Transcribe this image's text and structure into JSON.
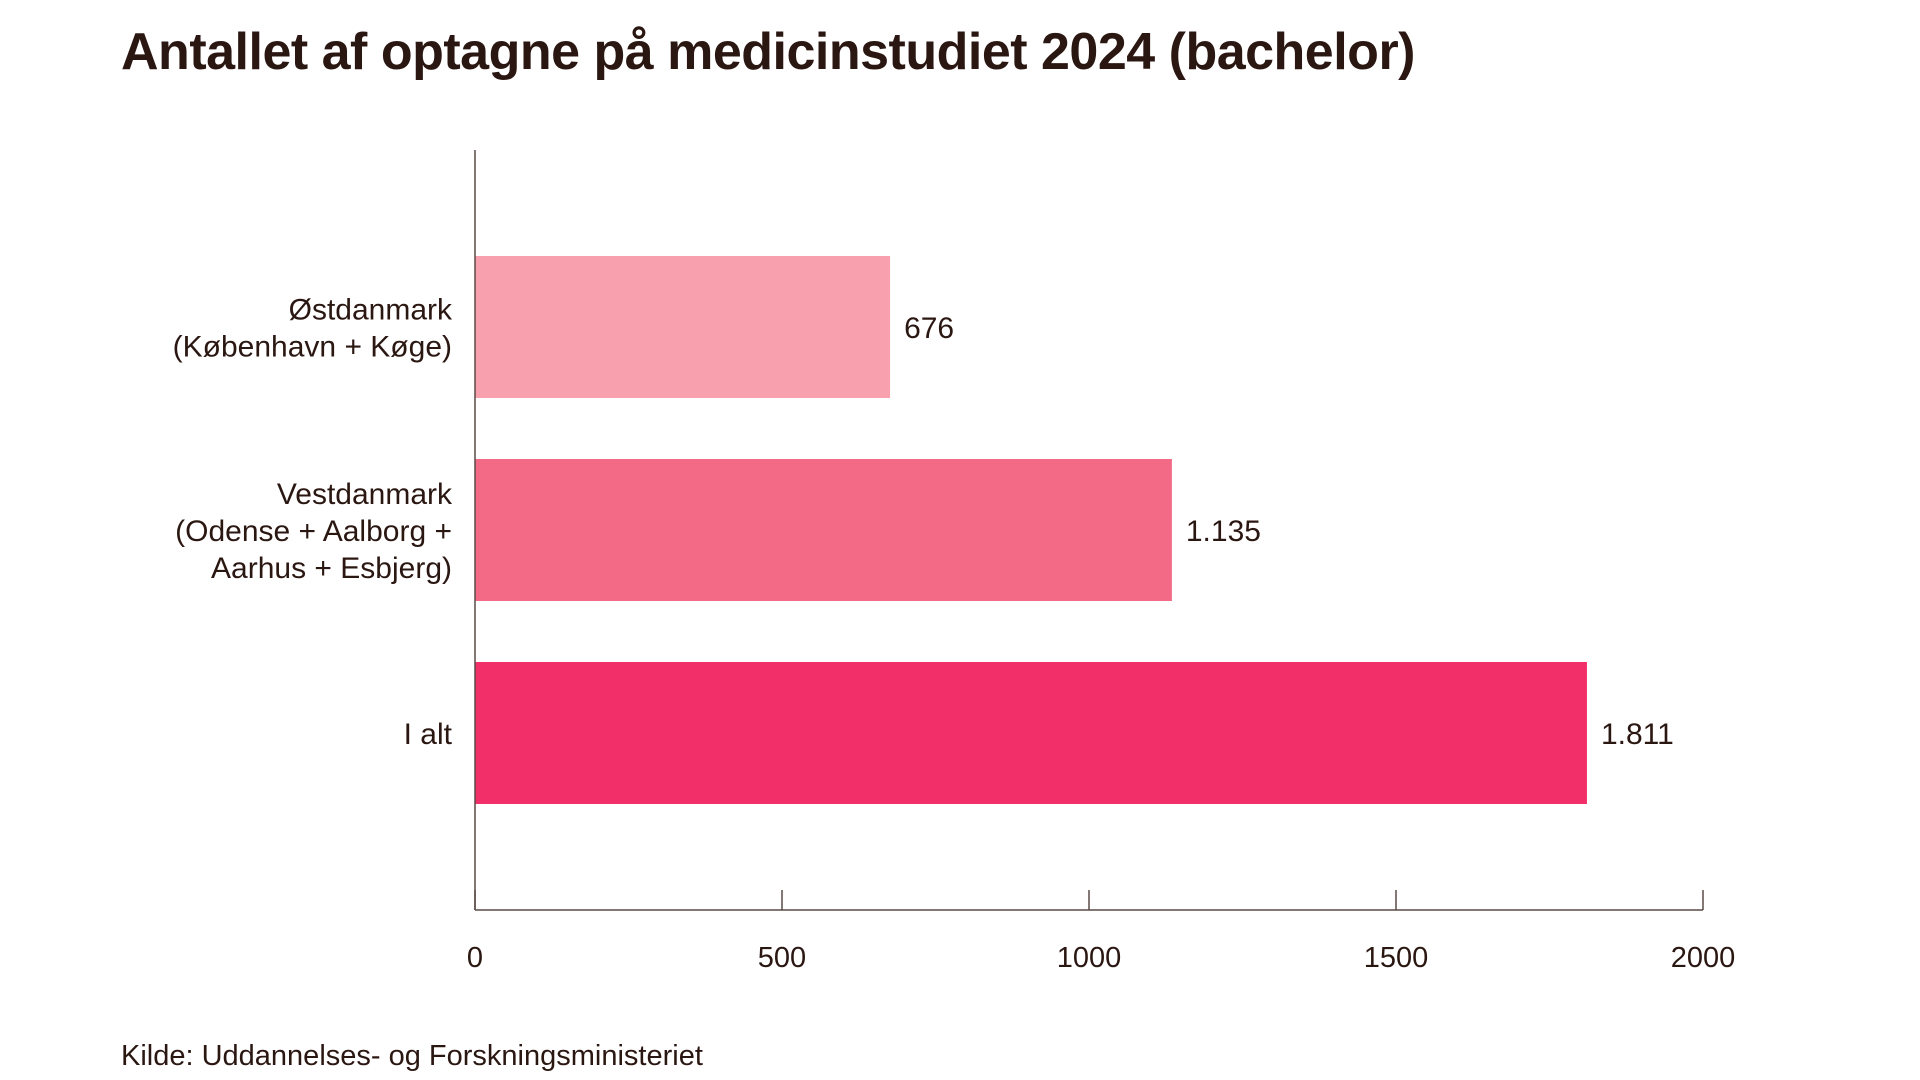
{
  "chart_data": {
    "type": "bar",
    "orientation": "horizontal",
    "title": "Antallet af optagne på medicinstudiet 2024 (bachelor)",
    "source": "Kilde: Uddannelses- og Forskningsministeriet",
    "categories": [
      [
        "Østdanmark",
        "(København + Køge)"
      ],
      [
        "Vestdanmark",
        "(Odense + Aalborg +",
        "Aarhus + Esbjerg)"
      ],
      [
        "I alt"
      ]
    ],
    "values": [
      676,
      1135,
      1811
    ],
    "value_labels": [
      "676",
      "1.135",
      "1.811"
    ],
    "colors": [
      "#f8a0ae",
      "#f36a87",
      "#f22f68"
    ],
    "xlim": [
      0,
      2000
    ],
    "xticks": [
      0,
      500,
      1000,
      1500,
      2000
    ],
    "xtick_labels": [
      "0",
      "500",
      "1000",
      "1500",
      "2000"
    ],
    "grid": false,
    "axis_color": "#5a4a45"
  }
}
